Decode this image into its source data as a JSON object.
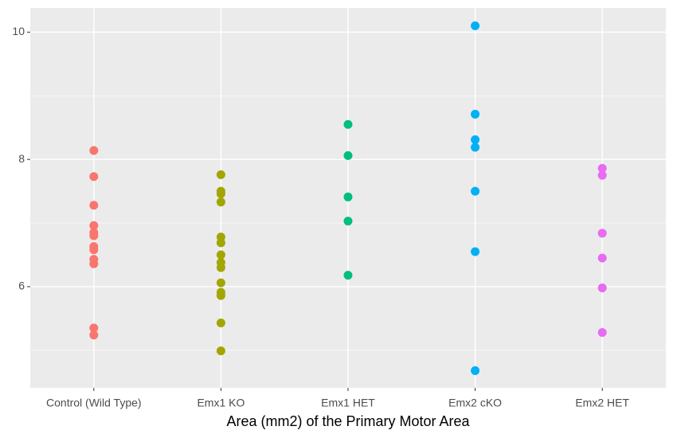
{
  "chart_data": {
    "type": "strip",
    "x_label": "Area (mm2) of the Primary Motor Area",
    "categories": [
      "Control (Wild Type)",
      "Emx1 KO",
      "Emx1 HET",
      "Emx2 cKO",
      "Emx2 HET"
    ],
    "colors": [
      "#F8766D",
      "#A3A500",
      "#00BF7D",
      "#00B0F6",
      "#E76BF3"
    ],
    "values": [
      [
        8.14,
        7.73,
        7.28,
        6.96,
        6.85,
        6.8,
        6.63,
        6.58,
        6.43,
        6.36,
        5.35,
        5.24
      ],
      [
        7.76,
        7.5,
        7.46,
        7.33,
        6.78,
        6.69,
        6.5,
        6.38,
        6.3,
        6.06,
        5.91,
        5.86,
        5.43,
        4.99
      ],
      [
        8.55,
        8.06,
        7.41,
        7.03,
        6.18
      ],
      [
        10.1,
        8.71,
        8.31,
        8.19,
        7.5,
        6.55,
        4.68
      ],
      [
        7.86,
        7.75,
        6.84,
        6.45,
        5.98,
        5.28
      ]
    ],
    "ylim": [
      4.41,
      10.38
    ],
    "yticks": [
      6,
      8,
      10
    ],
    "y_minor_ticks": [
      5,
      7,
      9
    ],
    "grid": true
  }
}
